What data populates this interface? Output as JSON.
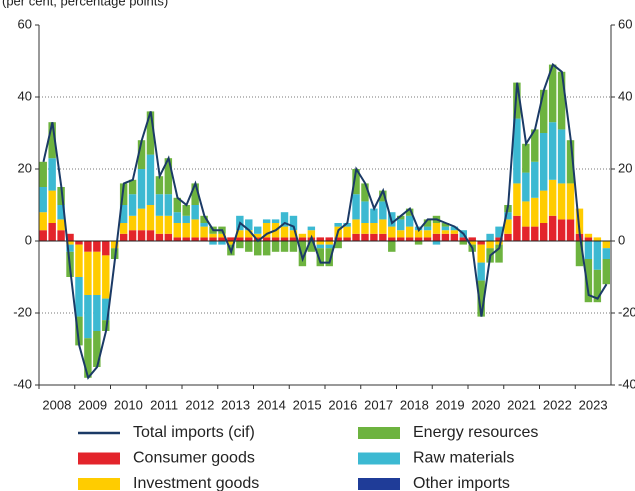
{
  "chart_data": {
    "type": "stacked-bar-line",
    "subtitle": "(per cent, percentage points)",
    "years": [
      "2008",
      "2009",
      "2010",
      "2011",
      "2012",
      "2013",
      "2014",
      "2015",
      "2016",
      "2017",
      "2018",
      "2019",
      "2020",
      "2021",
      "2022",
      "2023"
    ],
    "ylim": [
      -40,
      60
    ],
    "yticks": [
      -40,
      -20,
      0,
      20,
      40,
      60
    ],
    "grid": true,
    "total": {
      "name": "Total imports (cif)",
      "color": "#1b3a66",
      "values": [
        22,
        33,
        15,
        -8,
        -29,
        -38,
        -35,
        -25,
        -5,
        16,
        17,
        28,
        36,
        18,
        23,
        12,
        10,
        16,
        7,
        3,
        3,
        -3,
        5,
        3,
        0,
        2,
        3,
        5,
        4,
        -5,
        1,
        -6,
        -6,
        3,
        5,
        20,
        16,
        9,
        14,
        5,
        7,
        9,
        3,
        6,
        6,
        5,
        4,
        2,
        -2,
        -21,
        -4,
        -2,
        10,
        44,
        27,
        31,
        42,
        49,
        47,
        28,
        2,
        -15,
        -16,
        -12
      ]
    },
    "series": [
      {
        "name": "Consumer goods",
        "color": "#e3242b",
        "values": [
          3,
          5,
          3,
          2,
          -1,
          -3,
          -3,
          -4,
          0,
          2,
          3,
          3,
          3,
          2,
          2,
          1,
          1,
          1,
          1,
          1,
          1,
          1,
          1,
          1,
          1,
          1,
          1,
          1,
          1,
          1,
          1,
          1,
          1,
          1,
          1,
          2,
          2,
          2,
          2,
          1,
          1,
          1,
          1,
          1,
          2,
          2,
          2,
          1,
          1,
          -1,
          0,
          1,
          2,
          7,
          4,
          4,
          5,
          7,
          6,
          6,
          2,
          1,
          0,
          0
        ]
      },
      {
        "name": "Investment goods",
        "color": "#ffcc00",
        "values": [
          5,
          9,
          3,
          -1,
          -9,
          -12,
          -12,
          -12,
          -2,
          3,
          4,
          6,
          7,
          5,
          5,
          4,
          4,
          5,
          3,
          1,
          1,
          -1,
          2,
          2,
          1,
          4,
          4,
          3,
          2,
          1,
          2,
          -1,
          -1,
          3,
          3,
          4,
          3,
          3,
          4,
          3,
          2,
          3,
          2,
          2,
          3,
          1,
          1,
          0,
          -1,
          -5,
          -2,
          -1,
          4,
          9,
          7,
          8,
          9,
          10,
          10,
          10,
          7,
          1,
          1,
          -2
        ]
      },
      {
        "name": "Raw materials",
        "color": "#3cb9d2",
        "values": [
          7,
          9,
          4,
          -2,
          -11,
          -12,
          -10,
          -6,
          0,
          5,
          6,
          11,
          14,
          6,
          6,
          3,
          2,
          4,
          1,
          -1,
          -1,
          0,
          4,
          3,
          2,
          1,
          1,
          4,
          4,
          0,
          1,
          -1,
          -1,
          1,
          1,
          7,
          6,
          4,
          5,
          4,
          3,
          3,
          1,
          1,
          -1,
          1,
          1,
          2,
          0,
          -5,
          2,
          3,
          2,
          18,
          8,
          10,
          16,
          16,
          15,
          0,
          0,
          -5,
          -8,
          -3
        ]
      },
      {
        "name": "Energy resources",
        "color": "#6db33f",
        "values": [
          7,
          10,
          5,
          -7,
          -8,
          -11,
          -10,
          -3,
          -3,
          6,
          4,
          8,
          12,
          5,
          10,
          4,
          3,
          6,
          2,
          2,
          2,
          -3,
          -2,
          -3,
          -4,
          -4,
          -3,
          -3,
          -3,
          -7,
          -3,
          -5,
          -5,
          -2,
          0,
          7,
          5,
          0,
          3,
          -3,
          1,
          2,
          -1,
          2,
          2,
          1,
          0,
          -1,
          -2,
          -10,
          -4,
          -5,
          2,
          10,
          8,
          9,
          12,
          16,
          16,
          12,
          -7,
          -12,
          -9,
          -7
        ]
      },
      {
        "name": "Other imports",
        "color": "#1f3c98",
        "values": [
          0,
          0,
          0,
          0,
          0,
          0,
          0,
          0,
          0,
          0,
          0,
          0,
          0,
          0,
          0,
          0,
          0,
          0,
          0,
          0,
          0,
          0,
          0,
          0,
          0,
          0,
          0,
          0,
          0,
          0,
          0,
          0,
          0,
          0,
          0,
          0,
          0,
          0,
          0,
          0,
          0,
          0,
          0,
          0,
          0,
          0,
          0,
          0,
          0,
          0,
          0,
          0,
          0,
          0,
          0,
          0,
          0,
          0,
          0,
          0,
          0,
          0,
          0,
          0
        ]
      }
    ]
  }
}
